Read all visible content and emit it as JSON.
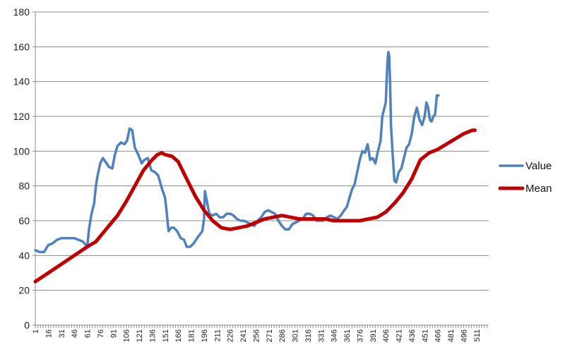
{
  "chart_data": {
    "type": "line",
    "title": "",
    "xlabel": "",
    "ylabel": "",
    "ylim": [
      0,
      180
    ],
    "y_ticks": [
      0,
      20,
      40,
      60,
      80,
      100,
      120,
      140,
      160,
      180
    ],
    "xlim": [
      1,
      525
    ],
    "x_tick_labels": [
      "1",
      "16",
      "31",
      "46",
      "61",
      "76",
      "91",
      "106",
      "121",
      "136",
      "151",
      "166",
      "181",
      "196",
      "211",
      "226",
      "241",
      "256",
      "271",
      "286",
      "301",
      "316",
      "331",
      "346",
      "361",
      "376",
      "391",
      "406",
      "421",
      "436",
      "451",
      "466",
      "481",
      "496",
      "511"
    ],
    "grid": "horizontal",
    "legend_position": "right",
    "series": [
      {
        "name": "Value",
        "color": "#4f81bd",
        "points": [
          [
            1,
            43
          ],
          [
            6,
            42
          ],
          [
            11,
            42
          ],
          [
            16,
            46
          ],
          [
            21,
            47
          ],
          [
            26,
            49
          ],
          [
            31,
            50
          ],
          [
            36,
            50
          ],
          [
            41,
            50
          ],
          [
            46,
            50
          ],
          [
            51,
            49
          ],
          [
            56,
            48
          ],
          [
            61,
            45
          ],
          [
            63,
            55
          ],
          [
            66,
            64
          ],
          [
            69,
            70
          ],
          [
            71,
            80
          ],
          [
            73,
            86
          ],
          [
            76,
            93
          ],
          [
            79,
            96
          ],
          [
            82,
            94
          ],
          [
            86,
            91
          ],
          [
            90,
            90
          ],
          [
            93,
            98
          ],
          [
            96,
            103
          ],
          [
            100,
            105
          ],
          [
            104,
            104
          ],
          [
            107,
            106
          ],
          [
            110,
            113
          ],
          [
            113,
            112
          ],
          [
            116,
            102
          ],
          [
            120,
            98
          ],
          [
            124,
            93
          ],
          [
            127,
            95
          ],
          [
            131,
            96
          ],
          [
            135,
            89
          ],
          [
            139,
            88
          ],
          [
            143,
            86
          ],
          [
            147,
            79
          ],
          [
            151,
            73
          ],
          [
            153,
            64
          ],
          [
            155,
            54
          ],
          [
            158,
            56
          ],
          [
            161,
            56
          ],
          [
            165,
            54
          ],
          [
            169,
            50
          ],
          [
            173,
            49
          ],
          [
            176,
            45
          ],
          [
            180,
            45
          ],
          [
            184,
            47
          ],
          [
            188,
            50
          ],
          [
            191,
            52
          ],
          [
            194,
            54
          ],
          [
            196,
            61
          ],
          [
            197,
            77
          ],
          [
            199,
            72
          ],
          [
            202,
            64
          ],
          [
            206,
            63
          ],
          [
            210,
            64
          ],
          [
            214,
            62
          ],
          [
            218,
            62
          ],
          [
            222,
            64
          ],
          [
            226,
            64
          ],
          [
            230,
            63
          ],
          [
            234,
            61
          ],
          [
            238,
            60
          ],
          [
            242,
            60
          ],
          [
            246,
            59
          ],
          [
            250,
            58
          ],
          [
            254,
            57
          ],
          [
            258,
            60
          ],
          [
            262,
            62
          ],
          [
            266,
            65
          ],
          [
            270,
            66
          ],
          [
            274,
            65
          ],
          [
            278,
            64
          ],
          [
            282,
            60
          ],
          [
            286,
            57
          ],
          [
            290,
            55
          ],
          [
            294,
            55
          ],
          [
            298,
            58
          ],
          [
            302,
            59
          ],
          [
            306,
            60
          ],
          [
            310,
            61
          ],
          [
            314,
            64
          ],
          [
            318,
            64
          ],
          [
            322,
            63
          ],
          [
            326,
            60
          ],
          [
            330,
            60
          ],
          [
            334,
            60
          ],
          [
            338,
            62
          ],
          [
            342,
            63
          ],
          [
            346,
            62
          ],
          [
            350,
            61
          ],
          [
            354,
            63
          ],
          [
            358,
            66
          ],
          [
            361,
            68
          ],
          [
            364,
            73
          ],
          [
            367,
            78
          ],
          [
            370,
            81
          ],
          [
            373,
            88
          ],
          [
            376,
            95
          ],
          [
            379,
            100
          ],
          [
            382,
            99
          ],
          [
            385,
            104
          ],
          [
            388,
            95
          ],
          [
            391,
            96
          ],
          [
            394,
            93
          ],
          [
            397,
            100
          ],
          [
            400,
            106
          ],
          [
            402,
            120
          ],
          [
            404,
            124
          ],
          [
            406,
            128
          ],
          [
            407,
            140
          ],
          [
            408,
            152
          ],
          [
            409,
            157
          ],
          [
            410,
            155
          ],
          [
            411,
            140
          ],
          [
            412,
            115
          ],
          [
            414,
            98
          ],
          [
            416,
            83
          ],
          [
            418,
            82
          ],
          [
            421,
            88
          ],
          [
            424,
            90
          ],
          [
            427,
            96
          ],
          [
            430,
            102
          ],
          [
            433,
            104
          ],
          [
            436,
            110
          ],
          [
            439,
            120
          ],
          [
            442,
            125
          ],
          [
            445,
            118
          ],
          [
            448,
            115
          ],
          [
            451,
            120
          ],
          [
            453,
            128
          ],
          [
            455,
            125
          ],
          [
            457,
            118
          ],
          [
            459,
            117
          ],
          [
            461,
            120
          ],
          [
            463,
            121
          ],
          [
            465,
            132
          ],
          [
            467,
            132
          ]
        ]
      },
      {
        "name": "Mean",
        "color": "#c00000",
        "points": [
          [
            1,
            25
          ],
          [
            16,
            30
          ],
          [
            31,
            35
          ],
          [
            46,
            40
          ],
          [
            61,
            45
          ],
          [
            71,
            48
          ],
          [
            76,
            51
          ],
          [
            86,
            57
          ],
          [
            96,
            63
          ],
          [
            106,
            71
          ],
          [
            116,
            80
          ],
          [
            126,
            89
          ],
          [
            136,
            95
          ],
          [
            142,
            98
          ],
          [
            147,
            99
          ],
          [
            151,
            98
          ],
          [
            159,
            97
          ],
          [
            166,
            94
          ],
          [
            176,
            84
          ],
          [
            186,
            74
          ],
          [
            196,
            66
          ],
          [
            206,
            60
          ],
          [
            216,
            56
          ],
          [
            226,
            55
          ],
          [
            236,
            56
          ],
          [
            246,
            57
          ],
          [
            256,
            59
          ],
          [
            266,
            61
          ],
          [
            276,
            62
          ],
          [
            286,
            63
          ],
          [
            296,
            62
          ],
          [
            306,
            61
          ],
          [
            316,
            61
          ],
          [
            326,
            61
          ],
          [
            336,
            61
          ],
          [
            346,
            60
          ],
          [
            356,
            60
          ],
          [
            366,
            60
          ],
          [
            376,
            60
          ],
          [
            386,
            61
          ],
          [
            396,
            62
          ],
          [
            406,
            65
          ],
          [
            416,
            70
          ],
          [
            426,
            76
          ],
          [
            436,
            84
          ],
          [
            446,
            95
          ],
          [
            456,
            99
          ],
          [
            466,
            101
          ],
          [
            476,
            104
          ],
          [
            486,
            107
          ],
          [
            496,
            110
          ],
          [
            501,
            111
          ],
          [
            506,
            112
          ],
          [
            509,
            112
          ]
        ]
      }
    ]
  }
}
